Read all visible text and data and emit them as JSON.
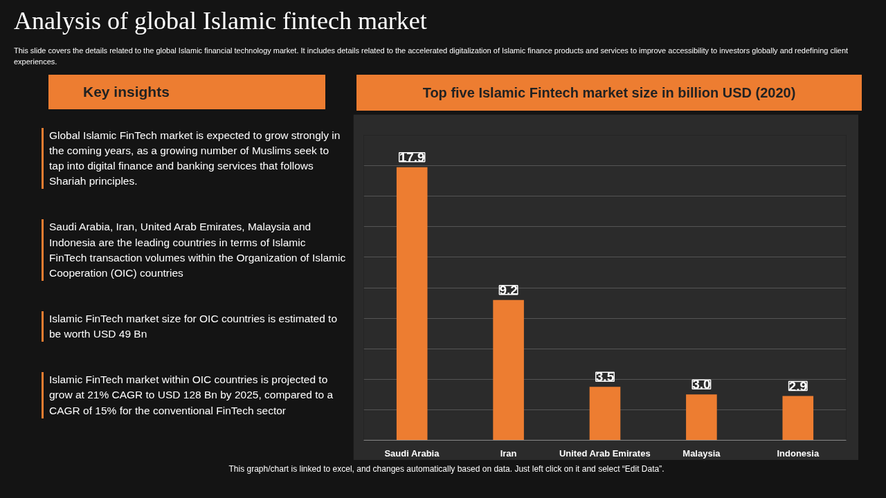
{
  "chart_data": {
    "type": "bar",
    "title": "Top five Islamic Fintech market size in billion USD (2020)",
    "categories": [
      "Saudi Arabia",
      "Iran",
      "United Arab Emirates",
      "Malaysia",
      "Indonesia"
    ],
    "values": [
      17.9,
      9.2,
      3.5,
      3.0,
      2.9
    ],
    "color": "#ed7d31",
    "value_labels": [
      "17.9",
      "9.2",
      "3.5",
      "3.0",
      "2.9"
    ],
    "ylim": [
      0,
      20
    ],
    "yticks": [
      {
        "value": 0,
        "label": null
      },
      {
        "value": 2,
        "label": null
      },
      {
        "value": 4,
        "label": null
      },
      {
        "value": 6,
        "label": null
      },
      {
        "value": 8,
        "label": null
      },
      {
        "value": 10,
        "label": null
      },
      {
        "value": 12,
        "label": null
      },
      {
        "value": 14,
        "label": null
      },
      {
        "value": 16,
        "label": null
      },
      {
        "value": 18,
        "label": null
      },
      {
        "value": 20,
        "label": null
      }
    ],
    "grid": "y",
    "tick_labels": "x",
    "annotations": [
      "Analysis of global Islamic fintech market",
      "This slide covers the details related to the global Islamic financial technology market. It includes details related to the accelerated digitalization of Islamic finance products and services to improve accessibility to investors globally and redefining client experiences.",
      "Key insights",
      "Global Islamic FinTech market is expected to grow strongly in the coming years, as a growing number of Muslims seek to tap into digital finance and banking services that follows Shariah principles.",
      "Saudi Arabia, Iran, United Arab Emirates, Malaysia and Indonesia are the leading countries in terms of Islamic FinTech transaction volumes within the Organization of Islamic Cooperation (OIC) countries",
      "Islamic FinTech market size for OIC countries is estimated to be worth USD 49 Bn",
      "Islamic FinTech market within OIC countries is projected to grow at 21% CAGR to USD 128 Bn by 2025, compared to a CAGR of 15% for the conventional FinTech sector",
      "This graph/chart is linked to excel, and changes automatically based on data. Just left click on it and select “Edit Data”."
    ]
  }
}
